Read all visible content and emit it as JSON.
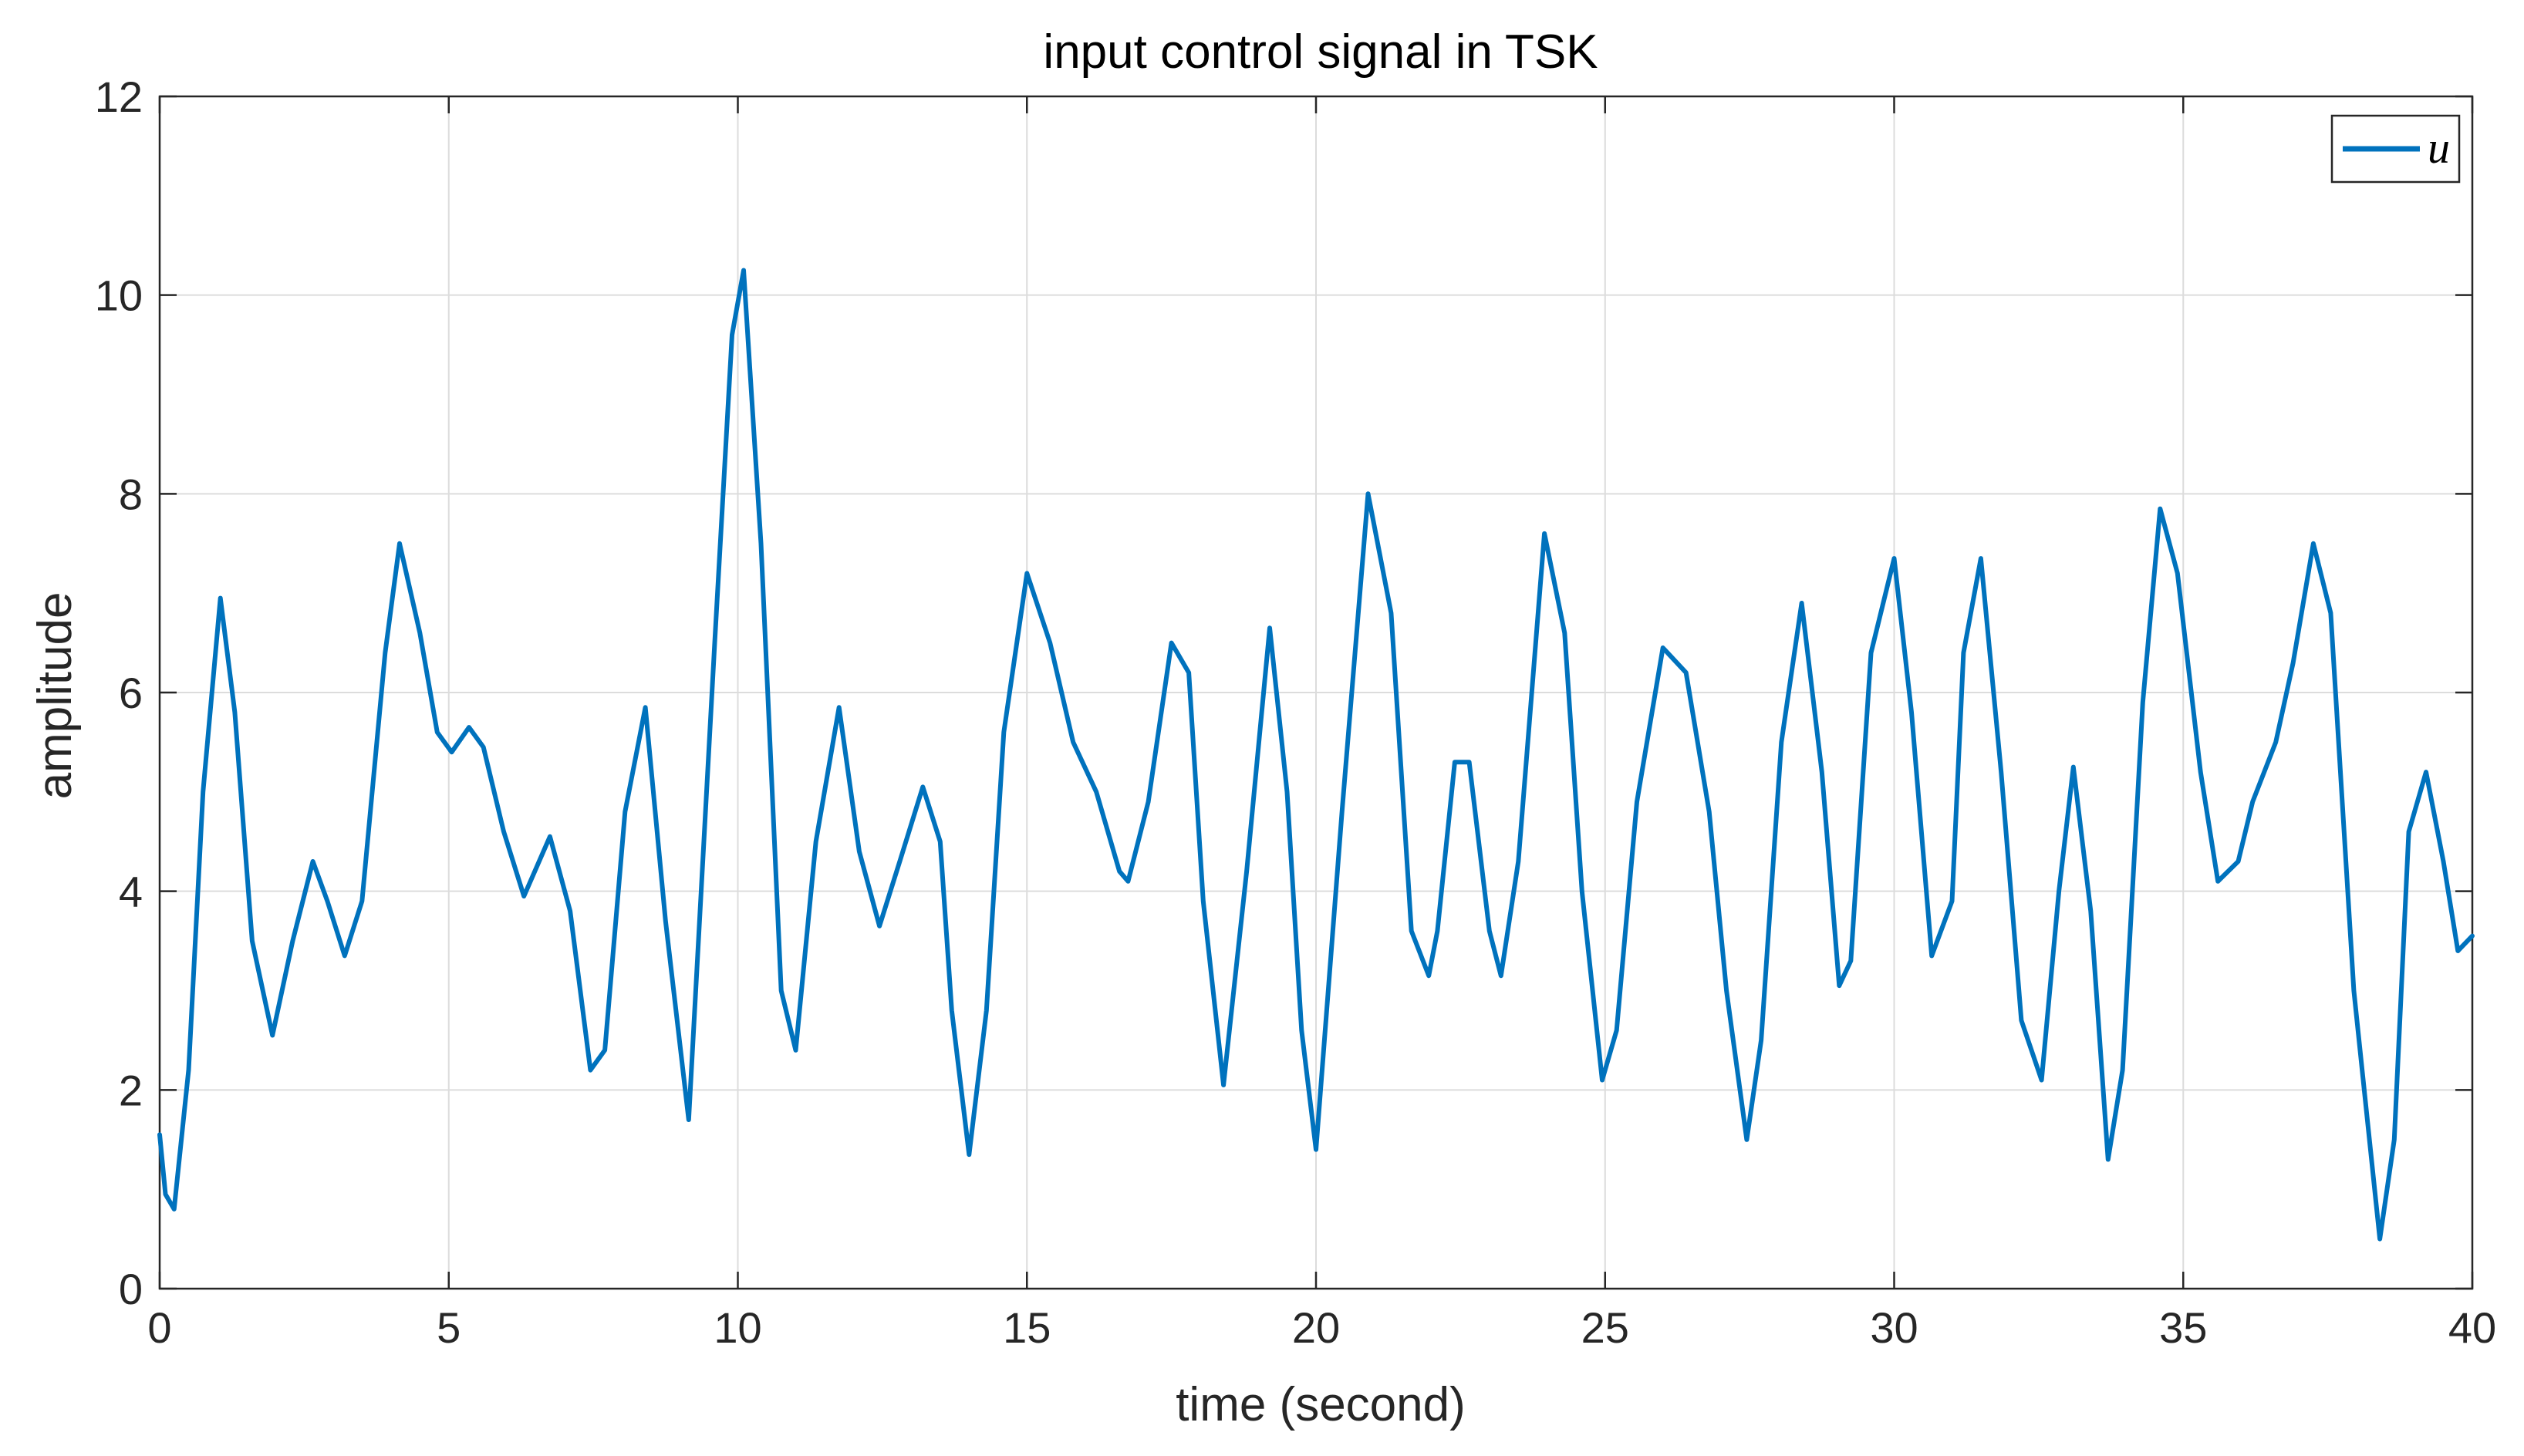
{
  "chart_data": {
    "type": "line",
    "title": "input control signal in TSK",
    "xlabel": "time (second)",
    "ylabel": "amplitude",
    "xlim": [
      0,
      40
    ],
    "ylim": [
      0,
      12
    ],
    "xticks": [
      0,
      5,
      10,
      15,
      20,
      25,
      30,
      35,
      40
    ],
    "yticks": [
      0,
      2,
      4,
      6,
      8,
      10,
      12
    ],
    "xtick_labels": [
      "0",
      "5",
      "10",
      "15",
      "20",
      "25",
      "30",
      "35",
      "40"
    ],
    "ytick_labels": [
      "0",
      "2",
      "4",
      "6",
      "8",
      "10",
      "12"
    ],
    "grid": true,
    "legend": {
      "position": "top-right",
      "entries": [
        "u"
      ]
    },
    "series": [
      {
        "name": "u",
        "color": "#0072BD",
        "x": [
          0,
          0.1,
          0.25,
          0.5,
          0.75,
          1.05,
          1.3,
          1.6,
          1.95,
          2.3,
          2.65,
          2.9,
          3.2,
          3.5,
          3.9,
          4.15,
          4.5,
          4.8,
          5.05,
          5.35,
          5.6,
          5.95,
          6.3,
          6.75,
          7.1,
          7.45,
          7.7,
          8.05,
          8.4,
          8.75,
          9.15,
          9.6,
          9.9,
          10.1,
          10.4,
          10.75,
          11.0,
          11.35,
          11.75,
          12.1,
          12.45,
          12.8,
          13.2,
          13.5,
          13.7,
          14.0,
          14.3,
          14.6,
          15.0,
          15.4,
          15.8,
          16.2,
          16.6,
          16.75,
          17.1,
          17.5,
          17.8,
          18.05,
          18.4,
          18.8,
          19.2,
          19.5,
          19.75,
          20.0,
          20.45,
          20.9,
          21.3,
          21.65,
          21.95,
          22.1,
          22.4,
          22.65,
          23.0,
          23.2,
          23.5,
          23.95,
          24.3,
          24.6,
          24.95,
          25.2,
          25.55,
          26.0,
          26.4,
          26.8,
          27.1,
          27.45,
          27.7,
          28.05,
          28.4,
          28.75,
          29.05,
          29.25,
          29.6,
          30.0,
          30.3,
          30.65,
          31.0,
          31.2,
          31.5,
          31.85,
          32.2,
          32.55,
          32.85,
          33.1,
          33.4,
          33.7,
          33.95,
          34.3,
          34.6,
          34.9,
          35.3,
          35.6,
          35.95,
          36.2,
          36.6,
          36.9,
          37.25,
          37.55,
          37.95,
          38.4,
          38.65,
          38.9,
          39.2,
          39.5,
          39.75,
          40.0
        ],
        "values": [
          1.55,
          0.95,
          0.8,
          2.2,
          5.0,
          6.95,
          5.8,
          3.5,
          2.55,
          3.5,
          4.3,
          3.9,
          3.35,
          3.9,
          6.4,
          7.5,
          6.6,
          5.6,
          5.4,
          5.65,
          5.45,
          4.6,
          3.95,
          4.55,
          3.8,
          2.2,
          2.4,
          4.8,
          5.85,
          3.7,
          1.7,
          6.5,
          9.6,
          10.25,
          7.5,
          3.0,
          2.4,
          4.5,
          5.85,
          4.4,
          3.65,
          4.3,
          5.05,
          4.5,
          2.8,
          1.35,
          2.8,
          5.6,
          7.2,
          6.5,
          5.5,
          5.0,
          4.2,
          4.1,
          4.9,
          6.5,
          6.2,
          3.9,
          2.05,
          4.2,
          6.65,
          5.0,
          2.6,
          1.4,
          4.8,
          8.0,
          6.8,
          3.6,
          3.15,
          3.6,
          5.3,
          5.3,
          3.6,
          3.15,
          4.3,
          7.6,
          6.6,
          4.0,
          2.1,
          2.6,
          4.9,
          6.45,
          6.2,
          4.8,
          3.0,
          1.5,
          2.5,
          5.5,
          6.9,
          5.2,
          3.05,
          3.3,
          6.4,
          7.35,
          5.8,
          3.35,
          3.9,
          6.4,
          7.35,
          5.2,
          2.7,
          2.1,
          4.0,
          5.25,
          3.8,
          1.3,
          2.2,
          5.9,
          7.85,
          7.2,
          5.2,
          4.1,
          4.3,
          4.9,
          5.5,
          6.3,
          7.5,
          6.8,
          3.0,
          0.5,
          1.5,
          4.6,
          5.2,
          4.3,
          3.4,
          3.55
        ]
      }
    ]
  }
}
